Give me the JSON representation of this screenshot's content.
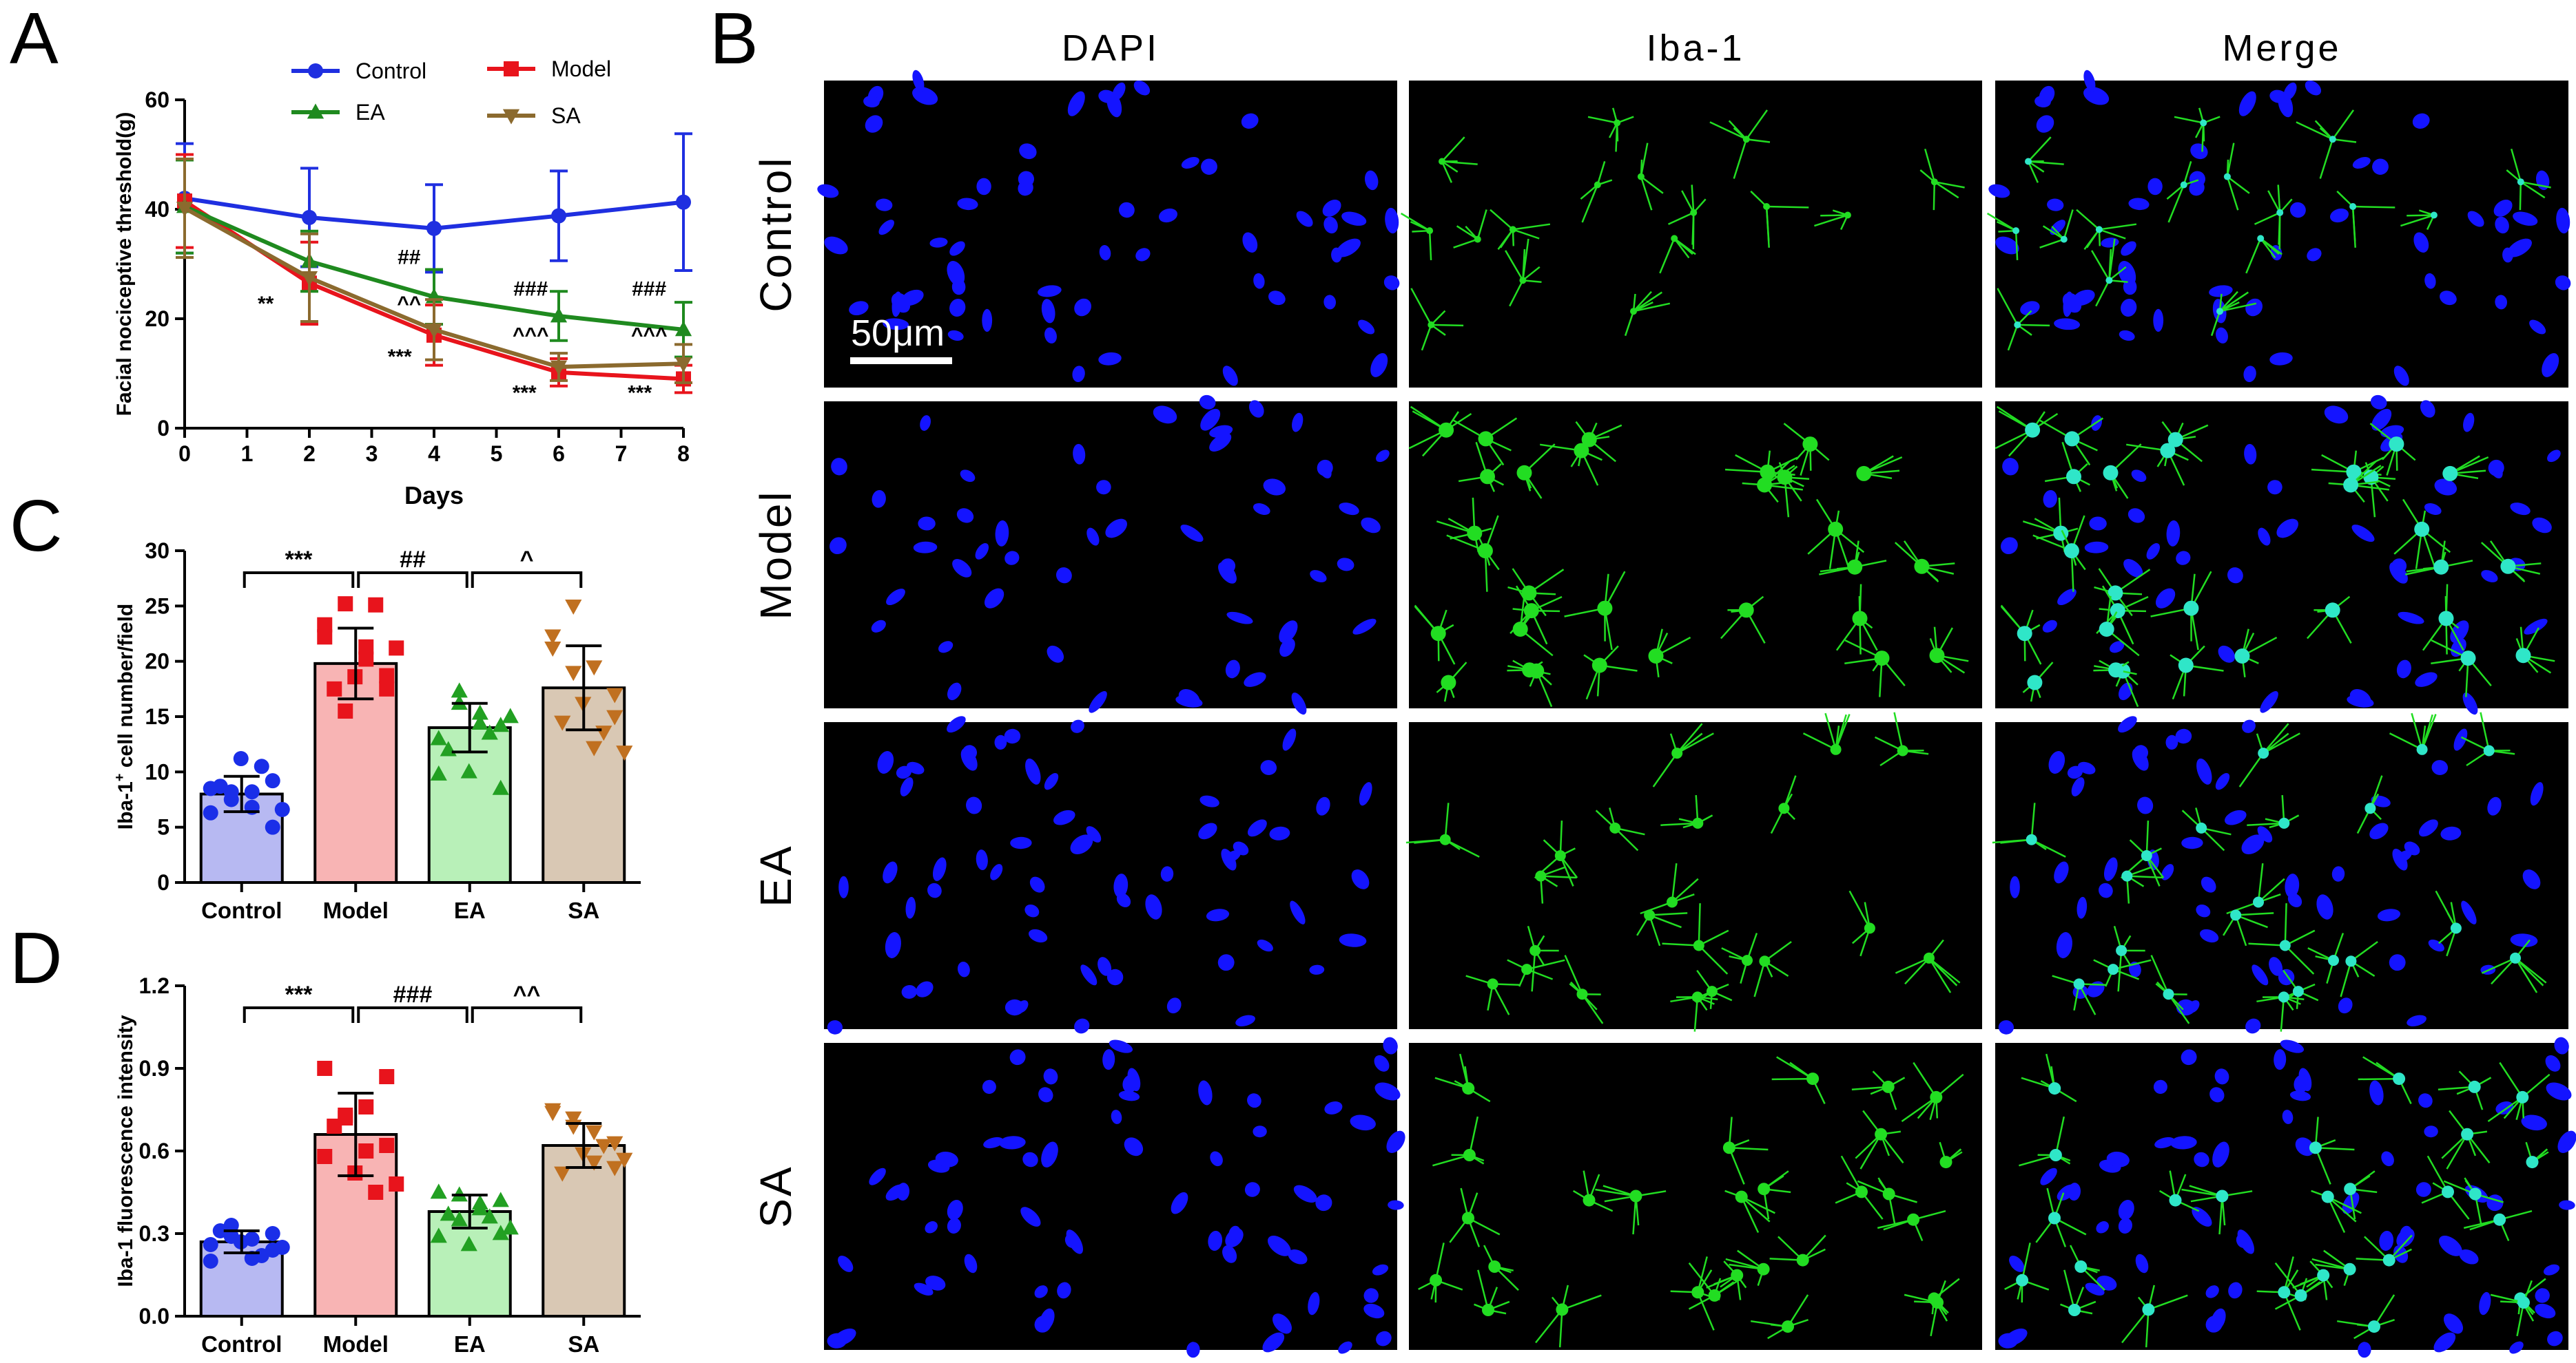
{
  "colors": {
    "control": "#1f2fe0",
    "model": "#e8141c",
    "ea": "#1f8a1f",
    "sa": "#8b6a2e",
    "bar_control": "#b7b9f2",
    "bar_model": "#f8b4b4",
    "bar_ea": "#b8f0b8",
    "bar_sa": "#d9c8b4",
    "pt_control": "#1a2ee8",
    "pt_model": "#e8141c",
    "pt_ea": "#22a022",
    "pt_sa": "#c07020",
    "dapi": "#1414ff",
    "iba": "#22dd22"
  },
  "panel_labels": {
    "a": "A",
    "b": "B",
    "c": "C",
    "d": "D"
  },
  "micrograph": {
    "columns": [
      "DAPI",
      "Iba-1",
      "Merge"
    ],
    "rows": [
      "Control",
      "Model",
      "EA",
      "SA"
    ],
    "scale_bar": "50μm"
  },
  "chart_data": [
    {
      "id": "A",
      "type": "line",
      "xlabel": "Days",
      "ylabel": "Facial nociceptive threshold(g)",
      "x": [
        0,
        2,
        4,
        6,
        8
      ],
      "xticks": [
        "0",
        "1",
        "2",
        "3",
        "4",
        "5",
        "6",
        "7",
        "8"
      ],
      "yticks": [
        "0",
        "20",
        "40",
        "60"
      ],
      "xlim": [
        0,
        8
      ],
      "ylim": [
        0,
        60
      ],
      "legend": "top",
      "series": [
        {
          "name": "Control",
          "key": "control",
          "marker": "circle",
          "values": [
            42,
            38.5,
            36.5,
            38.8,
            41.3
          ],
          "err": [
            10,
            9,
            8,
            8.2,
            12.5
          ]
        },
        {
          "name": "Model",
          "key": "model",
          "marker": "square",
          "values": [
            41.5,
            26.5,
            17,
            10.2,
            9
          ],
          "err": [
            8.5,
            7.5,
            5.5,
            2.5,
            2.5
          ]
        },
        {
          "name": "EA",
          "key": "ea",
          "marker": "triangle",
          "values": [
            40.5,
            30.5,
            24,
            20.5,
            18
          ],
          "err": [
            8.5,
            5.5,
            5,
            4.5,
            5
          ]
        },
        {
          "name": "SA",
          "key": "sa",
          "marker": "triangle-down",
          "values": [
            40.2,
            27.5,
            18,
            11.2,
            11.8
          ],
          "err": [
            9,
            8,
            5.5,
            2.5,
            3.5
          ]
        }
      ],
      "annotations": [
        {
          "text": "**",
          "x": 1.3,
          "y": 21.5
        },
        {
          "text": "##",
          "x": 3.6,
          "y": 30
        },
        {
          "text": "^^",
          "x": 3.6,
          "y": 21.5
        },
        {
          "text": "***",
          "x": 3.45,
          "y": 11.8
        },
        {
          "text": "###",
          "x": 5.55,
          "y": 24.2
        },
        {
          "text": "^^^",
          "x": 5.55,
          "y": 15.8
        },
        {
          "text": "***",
          "x": 5.45,
          "y": 5.2
        },
        {
          "text": "###",
          "x": 7.45,
          "y": 24.2
        },
        {
          "text": "^^^",
          "x": 7.45,
          "y": 15.8
        },
        {
          "text": "***",
          "x": 7.3,
          "y": 5.2
        }
      ]
    },
    {
      "id": "C",
      "type": "bar",
      "ylabel_pre": "Iba-1",
      "ylabel_sup": "+",
      "ylabel_post": " cell number/field",
      "categories": [
        "Control",
        "Model",
        "EA",
        "SA"
      ],
      "values": [
        8,
        19.8,
        14,
        17.6
      ],
      "err": [
        1.6,
        3.2,
        2.2,
        3.8
      ],
      "ylim": [
        0,
        30
      ],
      "yticks": [
        "0",
        "5",
        "10",
        "15",
        "20",
        "25",
        "30"
      ],
      "points": [
        [
          6.3,
          7.5,
          8.2,
          9.2,
          8.7,
          11.2,
          10.5,
          6.6,
          8.5,
          8.2,
          6.8,
          5.0
        ],
        [
          22.2,
          25.2,
          21.3,
          18.7,
          17.5,
          18.6,
          25.1,
          21.2,
          23.3,
          15.5,
          20.2,
          17.5
        ],
        [
          13.0,
          16.2,
          15.3,
          14.2,
          12.0,
          10.0,
          13.5,
          15.0,
          9.8,
          17.3,
          14.4,
          8.5
        ],
        [
          22.3,
          25.0,
          19.5,
          17.0,
          14.5,
          16.2,
          13.6,
          11.8,
          21.2,
          19.0,
          12.2,
          15.0
        ]
      ],
      "brackets": [
        {
          "from": 0,
          "to": 1,
          "label": "***"
        },
        {
          "from": 1,
          "to": 2,
          "label": "##"
        },
        {
          "from": 2,
          "to": 3,
          "label": "^"
        }
      ]
    },
    {
      "id": "D",
      "type": "bar",
      "ylabel": "Iba-1 fluorescence intensity",
      "categories": [
        "Control",
        "Model",
        "EA",
        "SA"
      ],
      "values": [
        0.27,
        0.66,
        0.38,
        0.62
      ],
      "err": [
        0.04,
        0.15,
        0.06,
        0.08
      ],
      "ylim": [
        0,
        1.2
      ],
      "yticks": [
        "0.0",
        "0.3",
        "0.6",
        "0.9",
        "1.2"
      ],
      "points": [
        [
          0.2,
          0.33,
          0.28,
          0.3,
          0.31,
          0.27,
          0.22,
          0.25,
          0.26,
          0.29,
          0.21,
          0.24
        ],
        [
          0.9,
          0.72,
          0.76,
          0.62,
          0.69,
          0.52,
          0.45,
          0.48,
          0.58,
          0.73,
          0.6,
          0.87
        ],
        [
          0.29,
          0.44,
          0.39,
          0.42,
          0.37,
          0.26,
          0.36,
          0.32,
          0.45,
          0.35,
          0.41,
          0.3
        ],
        [
          0.75,
          0.72,
          0.67,
          0.54,
          0.52,
          0.59,
          0.62,
          0.57,
          0.74,
          0.69,
          0.56,
          0.63
        ]
      ],
      "brackets": [
        {
          "from": 0,
          "to": 1,
          "label": "***"
        },
        {
          "from": 1,
          "to": 2,
          "label": "###"
        },
        {
          "from": 2,
          "to": 3,
          "label": "^^"
        }
      ]
    }
  ]
}
